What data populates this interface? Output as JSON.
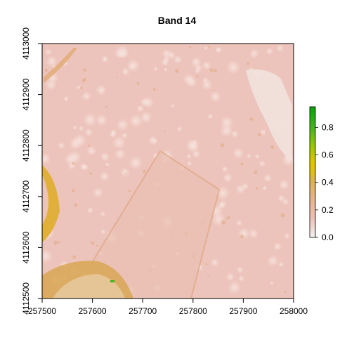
{
  "title": "Band 14",
  "chart_data": {
    "type": "heatmap",
    "title": "Band 14",
    "x_range": [
      257500,
      258000
    ],
    "y_range": [
      4112500,
      4113000
    ],
    "x_ticks": [
      257500,
      257600,
      257700,
      257800,
      257900,
      258000
    ],
    "y_ticks": [
      4112500,
      4112600,
      4112700,
      4112800,
      4112900,
      4113000
    ],
    "x_tick_labels": [
      "257500",
      "257600",
      "257700",
      "257800",
      "257900",
      "258000"
    ],
    "y_tick_labels": [
      "4112500",
      "4112600",
      "4112700",
      "4112800",
      "4112900",
      "4113000"
    ],
    "colorbar": {
      "range": [
        0,
        0.95
      ],
      "ticks": [
        0.0,
        0.2,
        0.4,
        0.6,
        0.8
      ],
      "tick_labels": [
        "0.0",
        "0.2",
        "0.4",
        "0.6",
        "0.8"
      ],
      "colors": [
        "#f2f2f2",
        "#efc0b6",
        "#e8b48a",
        "#e2b24a",
        "#e6c400",
        "#8fc414",
        "#3ab61a",
        "#00a600"
      ]
    }
  }
}
